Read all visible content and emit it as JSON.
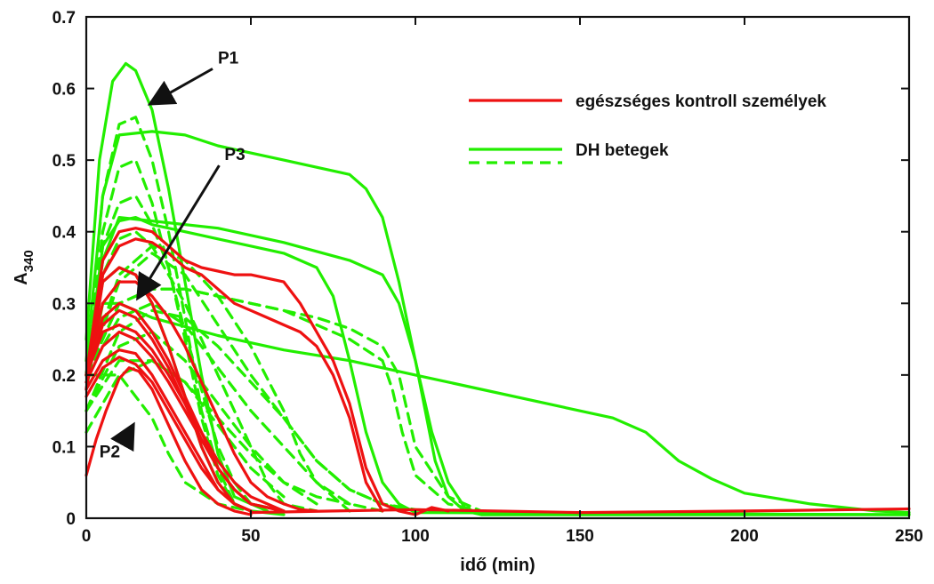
{
  "chart_data": {
    "type": "line",
    "xlabel": "idő (min)",
    "ylabel_main": "A",
    "ylabel_sub": "340",
    "xlim": [
      0,
      250
    ],
    "ylim": [
      0,
      0.7
    ],
    "xticks": [
      0,
      50,
      100,
      150,
      200,
      250
    ],
    "xtick_labels": [
      "0",
      "50",
      "100",
      "150",
      "200",
      "250"
    ],
    "yticks": [
      0,
      0.1,
      0.2,
      0.3,
      0.4,
      0.5,
      0.6,
      0.7
    ],
    "ytick_labels": [
      "0",
      "0.1",
      "0.2",
      "0.3",
      "0.4",
      "0.5",
      "0.6",
      "0.7"
    ],
    "grid": false,
    "legend_position": "top-right",
    "legend": [
      {
        "label": "egészséges kontroll személyek",
        "color": "#ee1111",
        "style": "solid"
      },
      {
        "label": "DH betegek",
        "color": "#22ee00",
        "style": "solid"
      },
      {
        "label": "",
        "color": "#22ee00",
        "style": "dashed"
      }
    ],
    "colors": {
      "control": "#ee1111",
      "patient": "#22ee00",
      "axis": "#111111"
    },
    "annotations": [
      {
        "text": "P1",
        "x": 40,
        "y": 0.635,
        "arrow_to": [
          20,
          0.58
        ]
      },
      {
        "text": "P3",
        "x": 42,
        "y": 0.5,
        "arrow_to": [
          16,
          0.31
        ]
      },
      {
        "text": "P2",
        "x": 4,
        "y": 0.085,
        "arrow_to": [
          14,
          0.128
        ]
      }
    ],
    "series": [
      {
        "group": "patient",
        "style": "solid",
        "x": [
          0,
          4,
          8,
          12,
          15,
          20,
          25,
          30,
          35,
          40,
          45,
          55
        ],
        "y": [
          0.25,
          0.5,
          0.61,
          0.635,
          0.625,
          0.57,
          0.46,
          0.33,
          0.2,
          0.09,
          0.03,
          0.01
        ]
      },
      {
        "group": "patient",
        "style": "solid",
        "x": [
          0,
          5,
          10,
          20,
          30,
          40,
          50,
          60,
          70,
          80,
          85,
          90,
          95,
          100,
          103,
          106,
          110,
          115,
          120,
          250
        ],
        "y": [
          0.22,
          0.45,
          0.535,
          0.54,
          0.535,
          0.52,
          0.51,
          0.5,
          0.49,
          0.48,
          0.46,
          0.42,
          0.33,
          0.22,
          0.15,
          0.08,
          0.03,
          0.01,
          0.005,
          0.005
        ]
      },
      {
        "group": "patient",
        "style": "solid",
        "x": [
          0,
          5,
          10,
          20,
          40,
          60,
          80,
          90,
          95,
          100,
          105,
          110,
          115,
          120,
          250
        ],
        "y": [
          0.2,
          0.36,
          0.42,
          0.415,
          0.405,
          0.385,
          0.36,
          0.34,
          0.3,
          0.22,
          0.12,
          0.05,
          0.015,
          0.005,
          0.005
        ]
      },
      {
        "group": "patient",
        "style": "solid",
        "x": [
          0,
          5,
          10,
          15,
          20,
          30,
          40,
          60,
          70,
          75,
          80,
          85,
          90,
          95,
          100,
          250
        ],
        "y": [
          0.2,
          0.38,
          0.415,
          0.42,
          0.41,
          0.4,
          0.39,
          0.37,
          0.35,
          0.31,
          0.22,
          0.12,
          0.05,
          0.02,
          0.008,
          0.005
        ]
      },
      {
        "group": "patient",
        "style": "solid",
        "x": [
          0,
          5,
          10,
          20,
          40,
          60,
          80,
          100,
          120,
          140,
          160,
          170,
          180,
          190,
          200,
          220,
          240,
          250
        ],
        "y": [
          0.18,
          0.3,
          0.3,
          0.28,
          0.255,
          0.235,
          0.22,
          0.2,
          0.18,
          0.16,
          0.14,
          0.12,
          0.08,
          0.055,
          0.035,
          0.02,
          0.01,
          0.008
        ]
      },
      {
        "group": "patient",
        "style": "solid",
        "x": [
          0,
          5,
          10,
          15,
          20,
          25,
          30,
          35,
          40,
          45,
          50,
          60
        ],
        "y": [
          0.2,
          0.33,
          0.35,
          0.34,
          0.3,
          0.24,
          0.17,
          0.1,
          0.05,
          0.02,
          0.01,
          0.005
        ]
      },
      {
        "group": "patient",
        "style": "dashed",
        "x": [
          0,
          5,
          10,
          15,
          20,
          25,
          30,
          35,
          40,
          45,
          50
        ],
        "y": [
          0.2,
          0.45,
          0.55,
          0.56,
          0.5,
          0.4,
          0.28,
          0.15,
          0.07,
          0.02,
          0.01
        ]
      },
      {
        "group": "patient",
        "style": "dashed",
        "x": [
          0,
          5,
          10,
          15,
          20,
          25,
          30,
          35,
          40,
          45,
          50
        ],
        "y": [
          0.2,
          0.4,
          0.49,
          0.5,
          0.44,
          0.35,
          0.25,
          0.14,
          0.06,
          0.02,
          0.01
        ]
      },
      {
        "group": "patient",
        "style": "dashed",
        "x": [
          0,
          5,
          10,
          15,
          20,
          25,
          30,
          35,
          40,
          45,
          50,
          60
        ],
        "y": [
          0.2,
          0.38,
          0.44,
          0.45,
          0.41,
          0.35,
          0.26,
          0.18,
          0.1,
          0.05,
          0.02,
          0.01
        ]
      },
      {
        "group": "patient",
        "style": "dashed",
        "x": [
          0,
          5,
          10,
          15,
          20,
          25,
          30,
          40,
          50,
          55,
          60,
          70
        ],
        "y": [
          0.2,
          0.34,
          0.39,
          0.4,
          0.38,
          0.34,
          0.3,
          0.2,
          0.1,
          0.05,
          0.02,
          0.01
        ]
      },
      {
        "group": "patient",
        "style": "dashed",
        "x": [
          0,
          10,
          20,
          30,
          40,
          50,
          60,
          65,
          70,
          80
        ],
        "y": [
          0.2,
          0.34,
          0.38,
          0.36,
          0.31,
          0.24,
          0.15,
          0.09,
          0.05,
          0.01
        ]
      },
      {
        "group": "patient",
        "style": "dashed",
        "x": [
          0,
          10,
          20,
          30,
          40,
          50,
          60,
          70,
          80,
          90,
          95,
          100,
          110,
          120
        ],
        "y": [
          0.2,
          0.3,
          0.32,
          0.32,
          0.31,
          0.3,
          0.29,
          0.28,
          0.265,
          0.24,
          0.2,
          0.1,
          0.03,
          0.01
        ]
      },
      {
        "group": "patient",
        "style": "dashed",
        "x": [
          0,
          10,
          20,
          30,
          40,
          50,
          60,
          70,
          80,
          90,
          93,
          96,
          100,
          110,
          120
        ],
        "y": [
          0.2,
          0.3,
          0.32,
          0.32,
          0.31,
          0.3,
          0.29,
          0.27,
          0.25,
          0.22,
          0.18,
          0.12,
          0.06,
          0.02,
          0.01
        ]
      },
      {
        "group": "patient",
        "style": "dashed",
        "x": [
          0,
          10,
          20,
          30,
          40,
          50,
          60,
          70,
          80,
          90,
          100
        ],
        "y": [
          0.2,
          0.33,
          0.37,
          0.34,
          0.27,
          0.2,
          0.14,
          0.08,
          0.04,
          0.02,
          0.01
        ]
      },
      {
        "group": "patient",
        "style": "dashed",
        "x": [
          0,
          10,
          20,
          30,
          40,
          50,
          60,
          70,
          80,
          90
        ],
        "y": [
          0.2,
          0.28,
          0.3,
          0.27,
          0.21,
          0.15,
          0.1,
          0.05,
          0.02,
          0.01
        ]
      },
      {
        "group": "patient",
        "style": "dashed",
        "x": [
          0,
          10,
          20,
          30,
          40,
          50,
          60,
          70,
          80,
          90,
          100,
          110
        ],
        "y": [
          0.15,
          0.26,
          0.29,
          0.28,
          0.24,
          0.19,
          0.14,
          0.08,
          0.04,
          0.02,
          0.012,
          0.01
        ]
      },
      {
        "group": "patient",
        "style": "dashed",
        "x": [
          0,
          10,
          20,
          30,
          40,
          50,
          60,
          70
        ],
        "y": [
          0.15,
          0.24,
          0.26,
          0.22,
          0.16,
          0.1,
          0.05,
          0.02
        ]
      },
      {
        "group": "patient",
        "style": "dashed",
        "x": [
          0,
          10,
          20,
          30,
          40,
          50,
          60
        ],
        "y": [
          0.12,
          0.2,
          0.22,
          0.19,
          0.13,
          0.07,
          0.03
        ]
      },
      {
        "group": "patient",
        "style": "dashed",
        "x": [
          0,
          10,
          20,
          30,
          40,
          50,
          60,
          70,
          80
        ],
        "y": [
          0.15,
          0.22,
          0.22,
          0.19,
          0.14,
          0.09,
          0.05,
          0.03,
          0.02
        ]
      },
      {
        "group": "patient",
        "style": "dashed",
        "x": [
          0,
          10,
          20,
          25,
          30,
          40,
          50
        ],
        "y": [
          0.2,
          0.2,
          0.14,
          0.09,
          0.05,
          0.02,
          0.01
        ]
      },
      {
        "group": "control",
        "style": "solid",
        "x": [
          0,
          5,
          10,
          15,
          20,
          25,
          30,
          35,
          40,
          45,
          50,
          55,
          60,
          65,
          70,
          75,
          80,
          85,
          90,
          95,
          100,
          105,
          110
        ],
        "y": [
          0.2,
          0.36,
          0.4,
          0.405,
          0.4,
          0.38,
          0.36,
          0.35,
          0.345,
          0.34,
          0.34,
          0.335,
          0.33,
          0.3,
          0.26,
          0.22,
          0.16,
          0.07,
          0.02,
          0.01,
          0.005,
          0.015,
          0.01
        ]
      },
      {
        "group": "control",
        "style": "solid",
        "x": [
          0,
          5,
          10,
          15,
          20,
          25,
          30,
          35,
          40,
          45,
          50,
          55,
          60,
          65,
          70,
          75,
          80,
          85,
          90
        ],
        "y": [
          0.18,
          0.34,
          0.38,
          0.39,
          0.385,
          0.37,
          0.35,
          0.34,
          0.32,
          0.3,
          0.29,
          0.28,
          0.27,
          0.26,
          0.24,
          0.2,
          0.14,
          0.05,
          0.01
        ]
      },
      {
        "group": "control",
        "style": "solid",
        "x": [
          0,
          5,
          10,
          15,
          20,
          25,
          30,
          35,
          40,
          45,
          50
        ],
        "y": [
          0.18,
          0.33,
          0.35,
          0.34,
          0.3,
          0.24,
          0.17,
          0.1,
          0.05,
          0.02,
          0.01
        ]
      },
      {
        "group": "control",
        "style": "solid",
        "x": [
          0,
          5,
          10,
          15,
          20,
          25,
          30,
          35,
          40,
          45,
          50,
          60
        ],
        "y": [
          0.2,
          0.27,
          0.29,
          0.28,
          0.25,
          0.21,
          0.16,
          0.11,
          0.07,
          0.04,
          0.02,
          0.01
        ]
      },
      {
        "group": "control",
        "style": "solid",
        "x": [
          0,
          5,
          10,
          15,
          20,
          25,
          30,
          35,
          40,
          45,
          50,
          60
        ],
        "y": [
          0.2,
          0.26,
          0.27,
          0.26,
          0.235,
          0.2,
          0.16,
          0.12,
          0.08,
          0.05,
          0.03,
          0.01
        ]
      },
      {
        "group": "control",
        "style": "solid",
        "x": [
          0,
          5,
          10,
          15,
          20,
          25,
          30,
          35,
          40,
          45,
          50,
          60
        ],
        "y": [
          0.19,
          0.24,
          0.26,
          0.25,
          0.225,
          0.19,
          0.15,
          0.11,
          0.07,
          0.04,
          0.02,
          0.01
        ]
      },
      {
        "group": "control",
        "style": "solid",
        "x": [
          0,
          5,
          10,
          15,
          20,
          25,
          30,
          35,
          40,
          45,
          50
        ],
        "y": [
          0.18,
          0.22,
          0.235,
          0.23,
          0.2,
          0.16,
          0.12,
          0.08,
          0.04,
          0.02,
          0.01
        ]
      },
      {
        "group": "control",
        "style": "solid",
        "x": [
          0,
          5,
          10,
          15,
          20,
          25,
          30,
          35,
          40,
          45,
          50
        ],
        "y": [
          0.17,
          0.21,
          0.225,
          0.215,
          0.19,
          0.15,
          0.11,
          0.07,
          0.04,
          0.02,
          0.01
        ]
      },
      {
        "group": "control",
        "style": "solid",
        "x": [
          0,
          3,
          6,
          10,
          13,
          16,
          20,
          25,
          30,
          35,
          40,
          45,
          50
        ],
        "y": [
          0.06,
          0.11,
          0.15,
          0.195,
          0.21,
          0.205,
          0.18,
          0.13,
          0.08,
          0.04,
          0.02,
          0.01,
          0.005
        ]
      },
      {
        "group": "control",
        "style": "solid",
        "x": [
          0,
          5,
          10,
          15,
          20,
          25,
          30,
          35,
          40,
          45,
          50,
          55,
          60,
          65,
          70
        ],
        "y": [
          0.2,
          0.3,
          0.33,
          0.33,
          0.31,
          0.28,
          0.24,
          0.19,
          0.14,
          0.09,
          0.05,
          0.03,
          0.02,
          0.012,
          0.01
        ]
      },
      {
        "group": "control",
        "style": "solid",
        "x": [
          0,
          5,
          10,
          15,
          20,
          25,
          30,
          35,
          40,
          45,
          50,
          60
        ],
        "y": [
          0.2,
          0.28,
          0.3,
          0.29,
          0.26,
          0.22,
          0.17,
          0.12,
          0.07,
          0.04,
          0.02,
          0.01
        ]
      },
      {
        "group": "control",
        "style": "solid",
        "x": [
          50,
          75,
          100,
          150,
          200,
          250
        ],
        "y": [
          0.008,
          0.01,
          0.012,
          0.008,
          0.01,
          0.013
        ]
      }
    ]
  }
}
